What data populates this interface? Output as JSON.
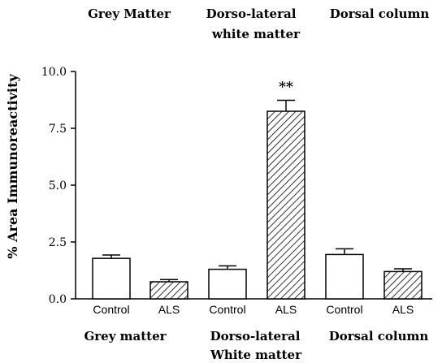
{
  "chart_data": {
    "type": "bar",
    "ylabel": "% Area Immunoreactivity",
    "ylim": [
      0,
      10
    ],
    "y_ticks": [
      "0.0",
      "2.5",
      "5.0",
      "7.5",
      "10.0"
    ],
    "grid": false,
    "top_group_labels": [
      "Grey Matter",
      "Dorso-lateral white matter",
      "Dorsal column"
    ],
    "bottom_group_labels": [
      "Grey matter",
      "Dorso-lateral White matter",
      "Dorsal column"
    ],
    "categories": [
      "Control",
      "ALS",
      "Control",
      "ALS",
      "Control",
      "ALS"
    ],
    "bars": [
      {
        "category": "Control",
        "group": "Grey matter",
        "value": 1.78,
        "error": 0.15,
        "pattern": "plain"
      },
      {
        "category": "ALS",
        "group": "Grey matter",
        "value": 0.75,
        "error": 0.1,
        "pattern": "hatched"
      },
      {
        "category": "Control",
        "group": "Dorso-lateral White matter",
        "value": 1.3,
        "error": 0.15,
        "pattern": "plain"
      },
      {
        "category": "ALS",
        "group": "Dorso-lateral White matter",
        "value": 8.25,
        "error": 0.48,
        "pattern": "hatched",
        "annotation": "**"
      },
      {
        "category": "Control",
        "group": "Dorsal column",
        "value": 1.95,
        "error": 0.25,
        "pattern": "plain"
      },
      {
        "category": "ALS",
        "group": "Dorsal column",
        "value": 1.2,
        "error": 0.12,
        "pattern": "hatched"
      }
    ]
  }
}
